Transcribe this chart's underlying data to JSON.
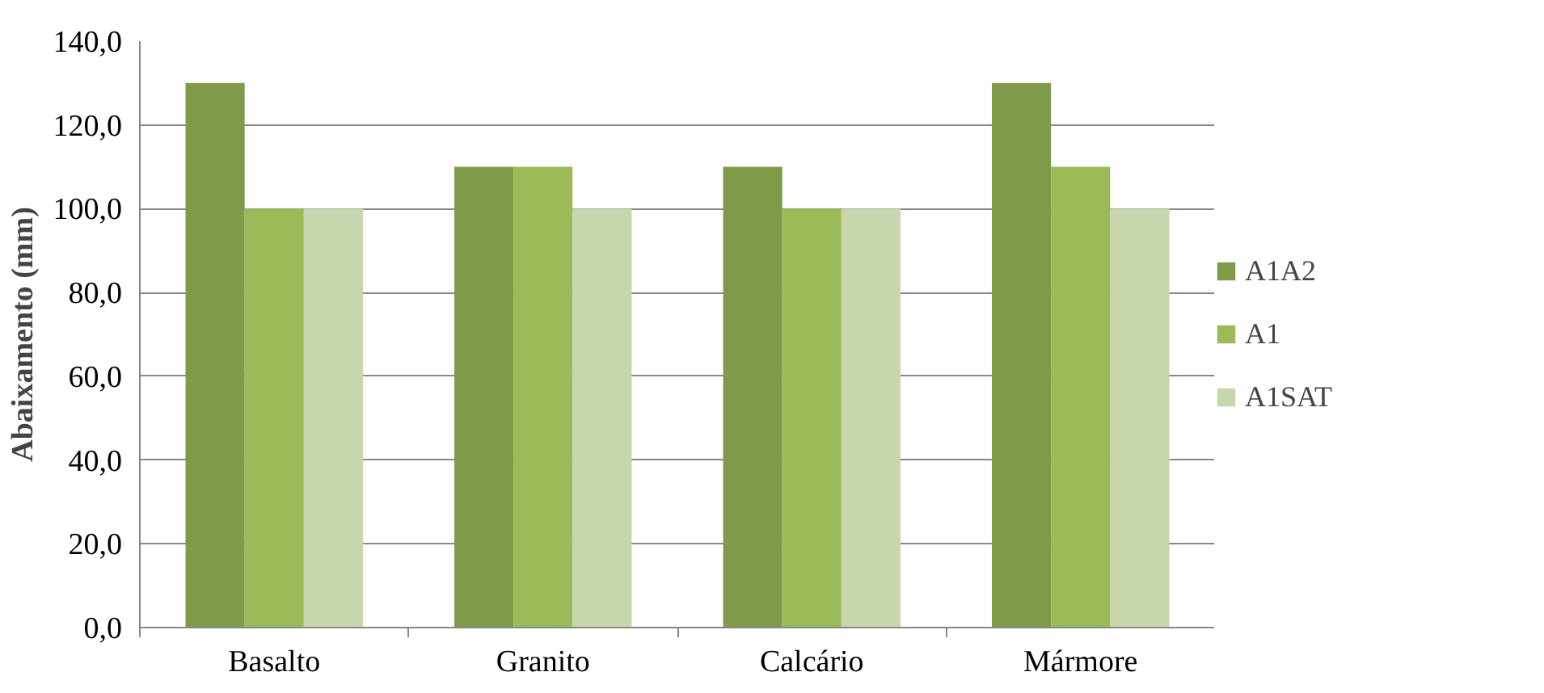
{
  "chart_data": {
    "type": "bar",
    "ylabel": "Abaixamento (mm)",
    "categories": [
      "Basalto",
      "Granito",
      "Calcário",
      "Mármore"
    ],
    "series": [
      {
        "name": "A1A2",
        "color": "#7f9b4a",
        "values": [
          130,
          110,
          110,
          130
        ]
      },
      {
        "name": "A1",
        "color": "#9bbb59",
        "values": [
          100,
          110,
          100,
          110
        ]
      },
      {
        "name": "A1SAT",
        "color": "#c8d6ad",
        "values": [
          100,
          100,
          100,
          100
        ]
      }
    ],
    "ylim": [
      0,
      140
    ],
    "yticks": [
      {
        "value": 0,
        "label": "0,0"
      },
      {
        "value": 20,
        "label": "20,0"
      },
      {
        "value": 40,
        "label": "40,0"
      },
      {
        "value": 60,
        "label": "60,0"
      },
      {
        "value": 80,
        "label": "80,0"
      },
      {
        "value": 100,
        "label": "100,0"
      },
      {
        "value": 120,
        "label": "120,0"
      },
      {
        "value": 140,
        "label": "140,0"
      }
    ],
    "grid": "y",
    "legend": "right"
  }
}
